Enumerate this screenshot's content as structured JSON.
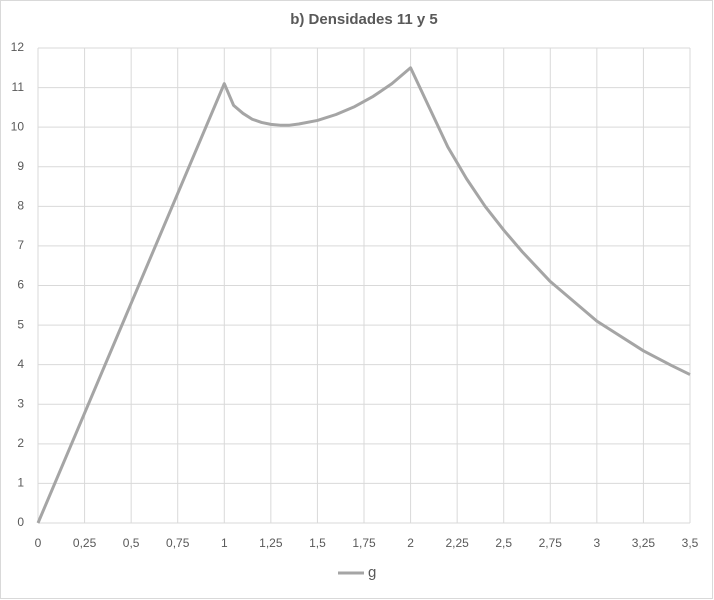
{
  "chart_data": {
    "type": "line",
    "title": "b) Densidades 11 y 5",
    "x": [
      0,
      0.5,
      1,
      1.05,
      1.1,
      1.15,
      1.2,
      1.25,
      1.3,
      1.35,
      1.4,
      1.5,
      1.6,
      1.7,
      1.75,
      1.8,
      1.9,
      2,
      2.1,
      2.2,
      2.25,
      2.3,
      2.4,
      2.5,
      2.6,
      2.75,
      2.9,
      3,
      3.1,
      3.25,
      3.4,
      3.5
    ],
    "series": [
      {
        "name": "g",
        "color": "#a5a5a5",
        "values": [
          0,
          5.55,
          11.1,
          10.55,
          10.35,
          10.2,
          10.12,
          10.07,
          10.05,
          10.05,
          10.08,
          10.17,
          10.32,
          10.52,
          10.65,
          10.78,
          11.1,
          11.5,
          10.5,
          9.5,
          9.1,
          8.7,
          8.0,
          7.4,
          6.85,
          6.1,
          5.5,
          5.1,
          4.8,
          4.35,
          3.98,
          3.75
        ]
      }
    ],
    "xlim": [
      0,
      3.5
    ],
    "xticks": [
      0,
      {
        "value": 0.25,
        "label": "0,25"
      },
      {
        "value": 0.5,
        "label": "0,5"
      },
      {
        "value": 0.75,
        "label": "0,75"
      },
      1,
      {
        "value": 1.25,
        "label": "1,25"
      },
      {
        "value": 1.5,
        "label": "1,5"
      },
      {
        "value": 1.75,
        "label": "1,75"
      },
      2,
      {
        "value": 2.25,
        "label": "2,25"
      },
      {
        "value": 2.5,
        "label": "2,5"
      },
      {
        "value": 2.75,
        "label": "2,75"
      },
      3,
      {
        "value": 3.25,
        "label": "3,25"
      },
      {
        "value": 3.5,
        "label": "3,5"
      }
    ],
    "ylim": [
      0,
      12
    ],
    "yticks": [
      0,
      1,
      2,
      3,
      4,
      5,
      6,
      7,
      8,
      9,
      10,
      11,
      12
    ],
    "grid": true,
    "legend": "bottom"
  }
}
